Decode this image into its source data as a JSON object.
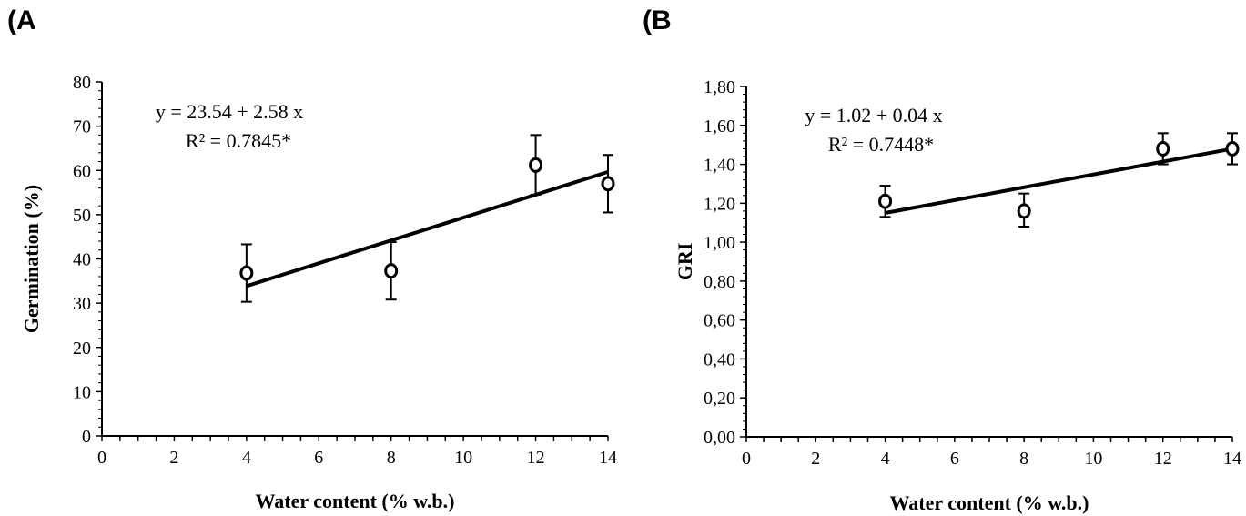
{
  "panels": {
    "a": {
      "label": "(A"
    },
    "b": {
      "label": "(B"
    }
  },
  "chart_data": [
    {
      "type": "scatter",
      "panel": "(A",
      "xlabel": "Water content (% w.b.)",
      "ylabel": "Germination (%)",
      "xlim": [
        0,
        14
      ],
      "ylim": [
        0,
        80
      ],
      "xticks": [
        0,
        2,
        4,
        6,
        8,
        10,
        12,
        14
      ],
      "xtick_labels": [
        "0",
        "2",
        "4",
        "6",
        "8",
        "10",
        "12",
        "14"
      ],
      "yticks": [
        0,
        10,
        20,
        30,
        40,
        50,
        60,
        70,
        80
      ],
      "ytick_labels": [
        "0",
        "10",
        "20",
        "30",
        "40",
        "50",
        "60",
        "70",
        "80"
      ],
      "points": [
        {
          "x": 4,
          "y": 36.8,
          "err_low": 30.3,
          "err_high": 43.3
        },
        {
          "x": 8,
          "y": 37.3,
          "err_low": 30.8,
          "err_high": 43.8
        },
        {
          "x": 12,
          "y": 61.2,
          "err_low": 54.5,
          "err_high": 68.0
        },
        {
          "x": 14,
          "y": 57.0,
          "err_low": 50.5,
          "err_high": 63.5
        }
      ],
      "fit_line": {
        "x": [
          4,
          14
        ],
        "y": [
          33.86,
          59.66
        ]
      },
      "equation": "y = 23.54 + 2.58 x",
      "r_squared": "R² = 0.7845*",
      "grid": false,
      "marker": "open-circle",
      "color": "#000000"
    },
    {
      "type": "scatter",
      "panel": "(B",
      "xlabel": "Water content (% w.b.)",
      "ylabel": "GRI",
      "xlim": [
        0,
        14
      ],
      "ylim": [
        0,
        1.8
      ],
      "xticks": [
        0,
        2,
        4,
        6,
        8,
        10,
        12,
        14
      ],
      "xtick_labels": [
        "0",
        "2",
        "4",
        "6",
        "8",
        "10",
        "12",
        "14"
      ],
      "yticks": [
        0,
        0.2,
        0.4,
        0.6,
        0.8,
        1.0,
        1.2,
        1.4,
        1.6,
        1.8
      ],
      "ytick_labels": [
        "0,00",
        "0,20",
        "0,40",
        "0,60",
        "0,80",
        "1,00",
        "1,20",
        "1,40",
        "1,60",
        "1,80"
      ],
      "points": [
        {
          "x": 4,
          "y": 1.21,
          "err_low": 1.13,
          "err_high": 1.29
        },
        {
          "x": 8,
          "y": 1.16,
          "err_low": 1.08,
          "err_high": 1.25
        },
        {
          "x": 12,
          "y": 1.48,
          "err_low": 1.4,
          "err_high": 1.56
        },
        {
          "x": 14,
          "y": 1.48,
          "err_low": 1.4,
          "err_high": 1.56
        }
      ],
      "fit_line": {
        "x": [
          4,
          14
        ],
        "y": [
          1.15,
          1.48
        ]
      },
      "equation": "y = 1.02 + 0.04 x",
      "r_squared": "R² = 0.7448*",
      "grid": false,
      "marker": "open-circle",
      "color": "#000000"
    }
  ]
}
